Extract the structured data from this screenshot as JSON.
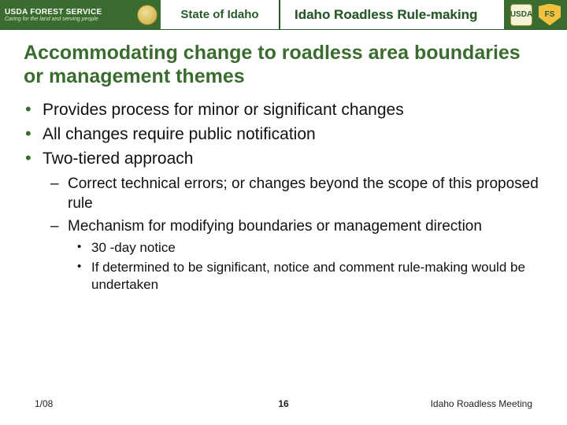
{
  "header": {
    "agency_line1": "USDA FOREST SERVICE",
    "agency_line2": "Caring for the land and serving people",
    "state_label": "State of Idaho",
    "banner_title": "Idaho Roadless Rule-making"
  },
  "colors": {
    "header_green": "#3a6b2f",
    "title_green": "#3a6b2f",
    "text_black": "#111111",
    "background": "#ffffff"
  },
  "slide": {
    "title": "Accommodating change to roadless area boundaries or management themes",
    "bullets_l1": [
      "Provides process for minor or significant changes",
      "All changes require public notification",
      "Two-tiered approach"
    ],
    "bullets_l2": [
      "Correct technical errors; or changes beyond the scope of this proposed rule",
      "Mechanism for modifying boundaries or management direction"
    ],
    "bullets_l3": [
      "30 -day notice",
      "If determined to be significant, notice and comment rule-making would be undertaken"
    ]
  },
  "footer": {
    "date": "1/08",
    "page": "16",
    "meeting": "Idaho Roadless Meeting"
  },
  "typography": {
    "title_fontsize_pt": 19,
    "l1_fontsize_pt": 16,
    "l2_fontsize_pt": 14,
    "l3_fontsize_pt": 13,
    "footer_fontsize_pt": 9,
    "font_family": "Arial"
  }
}
